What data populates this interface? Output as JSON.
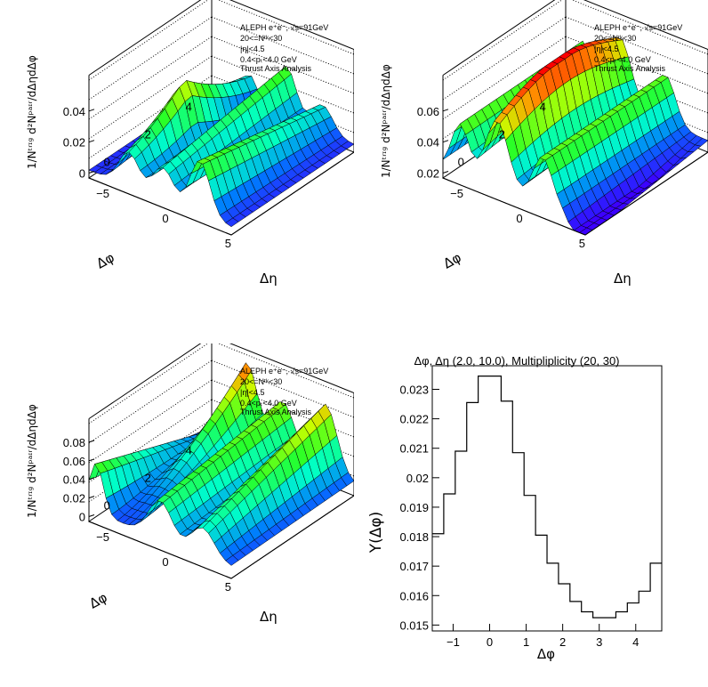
{
  "legend": {
    "line1": "ALEPH e⁺e⁻, √s=91GeV",
    "line2": "20<=Nᵗᵏ<30",
    "line3": "|η|<4.5",
    "line4": "0.4<pₜ<4.0 GeV",
    "line5": "Thrust Axis Analysis"
  },
  "surface_labels": {
    "z_title": "1/Nᵗʳᶦᵍ d²Nᵖᵃᶦʳ/dΔηdΔφ",
    "x_title": "Δη",
    "y_title": "Δφ"
  },
  "colors": {
    "low": "#3b00ff",
    "mid": "#00ff80",
    "high": "#ff0000"
  },
  "chart_data": [
    {
      "type": "surface",
      "x_ticks": [
        "5",
        "0",
        "−5"
      ],
      "y_ticks": [
        "4",
        "2",
        "0"
      ],
      "z_ticks": [
        "0.04",
        "0.02",
        "0"
      ],
      "zlim": [
        0,
        0.05
      ]
    },
    {
      "type": "surface",
      "x_ticks": [
        "5",
        "0",
        "−5"
      ],
      "y_ticks": [
        "4",
        "2",
        "0"
      ],
      "z_ticks": [
        "0.06",
        "0.04",
        "0.02"
      ],
      "zlim": [
        0.015,
        0.07
      ]
    },
    {
      "type": "surface",
      "x_ticks": [
        "5",
        "0",
        "−5"
      ],
      "y_ticks": [
        "4",
        "2",
        "0"
      ],
      "z_ticks": [
        "0.08",
        "0.06",
        "0.04",
        "0.02",
        "0"
      ],
      "zlim": [
        0,
        0.09
      ]
    },
    {
      "type": "histogram",
      "title": "Δφ, Δη (2.0, 10.0), Multipliplicity (20, 30)",
      "xlabel": "Δφ",
      "ylabel": "Y(Δφ)",
      "xlim": [
        -1.571,
        4.712
      ],
      "ylim": [
        0.0148,
        0.0238
      ],
      "x_ticks": [
        -1,
        0,
        1,
        2,
        3,
        4
      ],
      "y_ticks": [
        0.015,
        0.016,
        0.017,
        0.018,
        0.019,
        0.02,
        0.021,
        0.022,
        0.023
      ],
      "y_tick_labels": [
        "0.015",
        "0.016",
        "0.017",
        "0.018",
        "0.019",
        "0.02",
        "0.021",
        "0.022",
        "0.023"
      ],
      "bin_edges": [
        -1.571,
        -1.257,
        -0.942,
        -0.628,
        -0.314,
        0.0,
        0.314,
        0.628,
        0.942,
        1.257,
        1.571,
        1.885,
        2.199,
        2.513,
        2.827,
        3.142,
        3.456,
        3.77,
        4.084,
        4.398,
        4.712
      ],
      "values": [
        0.0181,
        0.01945,
        0.0209,
        0.02255,
        0.02345,
        0.02345,
        0.0226,
        0.02085,
        0.0194,
        0.01805,
        0.0171,
        0.0164,
        0.0158,
        0.01545,
        0.01525,
        0.01525,
        0.01545,
        0.01575,
        0.01615,
        0.0171
      ]
    }
  ]
}
